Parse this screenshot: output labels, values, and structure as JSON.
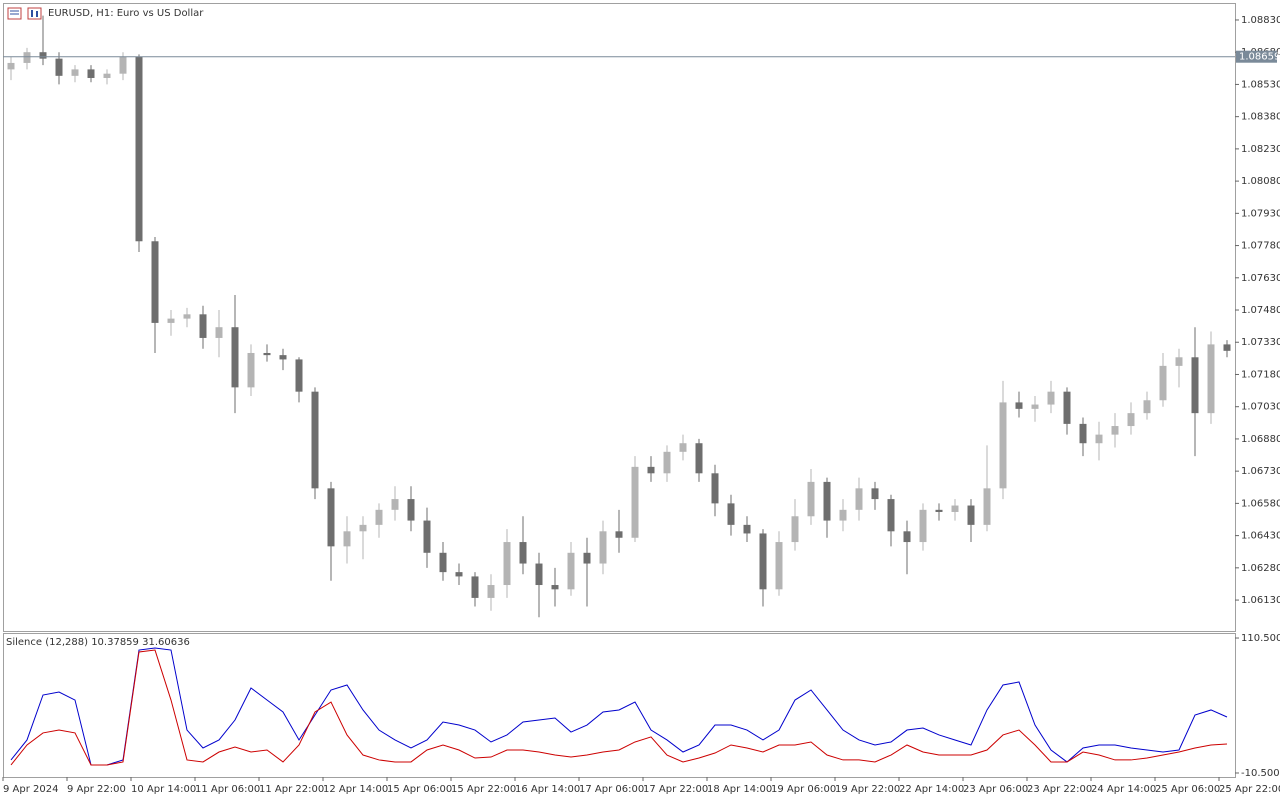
{
  "header": {
    "title": "EURUSD, H1:  Euro vs US Dollar"
  },
  "chart_data": [
    {
      "type": "candlestick",
      "up_color": "#b4b4b4",
      "down_color": "#6e6e6e",
      "ylim": [
        1.05986,
        1.08909
      ],
      "yticks": [
        {
          "value": 1.0883,
          "label": "1.08830"
        },
        {
          "value": 1.0868,
          "label": "1.08680"
        },
        {
          "value": 1.0853,
          "label": "1.08530"
        },
        {
          "value": 1.0838,
          "label": "1.08380"
        },
        {
          "value": 1.0823,
          "label": "1.08230"
        },
        {
          "value": 1.0808,
          "label": "1.08080"
        },
        {
          "value": 1.0793,
          "label": "1.07930"
        },
        {
          "value": 1.0778,
          "label": "1.07780"
        },
        {
          "value": 1.0763,
          "label": "1.07630"
        },
        {
          "value": 1.0748,
          "label": "1.07480"
        },
        {
          "value": 1.0733,
          "label": "1.07330"
        },
        {
          "value": 1.0718,
          "label": "1.07180"
        },
        {
          "value": 1.0703,
          "label": "1.07030"
        },
        {
          "value": 1.0688,
          "label": "1.06880"
        },
        {
          "value": 1.0673,
          "label": "1.06730"
        },
        {
          "value": 1.0658,
          "label": "1.06580"
        },
        {
          "value": 1.0643,
          "label": "1.06430"
        },
        {
          "value": 1.0628,
          "label": "1.06280"
        },
        {
          "value": 1.0613,
          "label": "1.06130"
        }
      ],
      "price_line": 1.08659,
      "price_line_color": "#7a8a99",
      "xticks": [
        {
          "value": 0,
          "label": "9 Apr 2024"
        },
        {
          "value": 4,
          "label": "9 Apr 22:00"
        },
        {
          "value": 8,
          "label": "10 Apr 14:00"
        },
        {
          "value": 12,
          "label": "11 Apr 06:00"
        },
        {
          "value": 16,
          "label": "11 Apr 22:00"
        },
        {
          "value": 20,
          "label": "12 Apr 14:00"
        },
        {
          "value": 24,
          "label": "15 Apr 06:00"
        },
        {
          "value": 28,
          "label": "15 Apr 22:00"
        },
        {
          "value": 32,
          "label": "16 Apr 14:00"
        },
        {
          "value": 36,
          "label": "17 Apr 06:00"
        },
        {
          "value": 40,
          "label": "17 Apr 22:00"
        },
        {
          "value": 44,
          "label": "18 Apr 14:00"
        },
        {
          "value": 48,
          "label": "19 Apr 06:00"
        },
        {
          "value": 52,
          "label": "19 Apr 22:00"
        },
        {
          "value": 56,
          "label": "22 Apr 14:00"
        },
        {
          "value": 60,
          "label": "23 Apr 06:00"
        },
        {
          "value": 64,
          "label": "23 Apr 22:00"
        },
        {
          "value": 68,
          "label": "24 Apr 14:00"
        },
        {
          "value": 72,
          "label": "25 Apr 06:00"
        },
        {
          "value": 76,
          "label": "25 Apr 22:00"
        }
      ],
      "ohlc": [
        [
          1.086,
          1.0866,
          1.0855,
          1.0863
        ],
        [
          1.0863,
          1.087,
          1.086,
          1.0868
        ],
        [
          1.0868,
          1.0885,
          1.0862,
          1.0865
        ],
        [
          1.0865,
          1.0868,
          1.0853,
          1.0857
        ],
        [
          1.0857,
          1.0862,
          1.0854,
          1.086
        ],
        [
          1.086,
          1.0862,
          1.0854,
          1.0856
        ],
        [
          1.0856,
          1.086,
          1.0853,
          1.0858
        ],
        [
          1.0858,
          1.0868,
          1.0855,
          1.0866
        ],
        [
          1.0866,
          1.0867,
          1.0775,
          1.078
        ],
        [
          1.078,
          1.0782,
          1.0728,
          1.0742
        ],
        [
          1.0742,
          1.0748,
          1.0736,
          1.0744
        ],
        [
          1.0744,
          1.0749,
          1.074,
          1.0746
        ],
        [
          1.0746,
          1.075,
          1.073,
          1.0735
        ],
        [
          1.0735,
          1.0748,
          1.0726,
          1.074
        ],
        [
          1.074,
          1.0755,
          1.07,
          1.0712
        ],
        [
          1.0712,
          1.0732,
          1.0708,
          1.0728
        ],
        [
          1.0728,
          1.0732,
          1.0724,
          1.0727
        ],
        [
          1.0727,
          1.073,
          1.072,
          1.0725
        ],
        [
          1.0725,
          1.0726,
          1.0705,
          1.071
        ],
        [
          1.071,
          1.0712,
          1.066,
          1.0665
        ],
        [
          1.0665,
          1.0668,
          1.0622,
          1.0638
        ],
        [
          1.0638,
          1.0652,
          1.063,
          1.0645
        ],
        [
          1.0645,
          1.0652,
          1.0632,
          1.0648
        ],
        [
          1.0648,
          1.0658,
          1.0642,
          1.0655
        ],
        [
          1.0655,
          1.0666,
          1.065,
          1.066
        ],
        [
          1.066,
          1.0666,
          1.0645,
          1.065
        ],
        [
          1.065,
          1.0656,
          1.0628,
          1.0635
        ],
        [
          1.0635,
          1.064,
          1.0622,
          1.0626
        ],
        [
          1.0626,
          1.063,
          1.062,
          1.0624
        ],
        [
          1.0624,
          1.0626,
          1.061,
          1.0614
        ],
        [
          1.0614,
          1.0625,
          1.0608,
          1.062
        ],
        [
          1.062,
          1.0646,
          1.0614,
          1.064
        ],
        [
          1.064,
          1.0652,
          1.0625,
          1.063
        ],
        [
          1.063,
          1.0635,
          1.0605,
          1.062
        ],
        [
          1.062,
          1.0628,
          1.061,
          1.0618
        ],
        [
          1.0618,
          1.064,
          1.0615,
          1.0635
        ],
        [
          1.0635,
          1.0642,
          1.061,
          1.063
        ],
        [
          1.063,
          1.065,
          1.0625,
          1.0645
        ],
        [
          1.0645,
          1.0655,
          1.0635,
          1.0642
        ],
        [
          1.0642,
          1.068,
          1.064,
          1.0675
        ],
        [
          1.0675,
          1.068,
          1.0668,
          1.0672
        ],
        [
          1.0672,
          1.0685,
          1.0668,
          1.0682
        ],
        [
          1.0682,
          1.069,
          1.0678,
          1.0686
        ],
        [
          1.0686,
          1.0688,
          1.0668,
          1.0672
        ],
        [
          1.0672,
          1.0676,
          1.0652,
          1.0658
        ],
        [
          1.0658,
          1.0662,
          1.0643,
          1.0648
        ],
        [
          1.0648,
          1.0652,
          1.064,
          1.0644
        ],
        [
          1.0644,
          1.0646,
          1.061,
          1.0618
        ],
        [
          1.0618,
          1.0645,
          1.0615,
          1.064
        ],
        [
          1.064,
          1.066,
          1.0636,
          1.0652
        ],
        [
          1.0652,
          1.0674,
          1.0648,
          1.0668
        ],
        [
          1.0668,
          1.067,
          1.0642,
          1.065
        ],
        [
          1.065,
          1.066,
          1.0645,
          1.0655
        ],
        [
          1.0655,
          1.067,
          1.065,
          1.0665
        ],
        [
          1.0665,
          1.0668,
          1.0655,
          1.066
        ],
        [
          1.066,
          1.0662,
          1.0638,
          1.0645
        ],
        [
          1.0645,
          1.065,
          1.0625,
          1.064
        ],
        [
          1.064,
          1.0658,
          1.0636,
          1.0655
        ],
        [
          1.0655,
          1.0658,
          1.065,
          1.0654
        ],
        [
          1.0654,
          1.066,
          1.065,
          1.0657
        ],
        [
          1.0657,
          1.066,
          1.064,
          1.0648
        ],
        [
          1.0648,
          1.0685,
          1.0645,
          1.0665
        ],
        [
          1.0665,
          1.0715,
          1.066,
          1.0705
        ],
        [
          1.0705,
          1.071,
          1.0698,
          1.0702
        ],
        [
          1.0702,
          1.0708,
          1.0696,
          1.0704
        ],
        [
          1.0704,
          1.0715,
          1.07,
          1.071
        ],
        [
          1.071,
          1.0712,
          1.069,
          1.0695
        ],
        [
          1.0695,
          1.0698,
          1.068,
          1.0686
        ],
        [
          1.0686,
          1.0696,
          1.0678,
          1.069
        ],
        [
          1.069,
          1.07,
          1.0684,
          1.0694
        ],
        [
          1.0694,
          1.0705,
          1.069,
          1.07
        ],
        [
          1.07,
          1.071,
          1.0697,
          1.0706
        ],
        [
          1.0706,
          1.0728,
          1.0703,
          1.0722
        ],
        [
          1.0722,
          1.073,
          1.0712,
          1.0726
        ],
        [
          1.0726,
          1.074,
          1.068,
          1.07
        ],
        [
          1.07,
          1.0738,
          1.0695,
          1.0732
        ],
        [
          1.0732,
          1.0734,
          1.0726,
          1.0729
        ]
      ]
    },
    {
      "type": "line",
      "title": "Silence (12,288) 10.37859 31.60636",
      "ylim": [
        -14.1,
        115
      ],
      "yticks": [
        {
          "value": 110.5,
          "label": "110.5000"
        },
        {
          "value": -10.5,
          "label": "-10.5000"
        }
      ],
      "series": [
        {
          "color": "#0000cc",
          "values": [
            1.2,
            19.1,
            59.4,
            62.1,
            54.9,
            -3.3,
            -3.3,
            1.2,
            99.7,
            101.5,
            99.7,
            28.0,
            11.9,
            19.1,
            37.0,
            65.7,
            54.9,
            44.2,
            19.1,
            41.5,
            63.9,
            68.4,
            46.0,
            28.0,
            19.1,
            11.9,
            19.1,
            35.2,
            32.5,
            28.0,
            17.3,
            23.6,
            35.2,
            37.0,
            38.8,
            26.2,
            32.5,
            44.2,
            46.0,
            53.1,
            28.0,
            19.1,
            8.3,
            14.6,
            32.5,
            32.5,
            28.0,
            19.1,
            28.0,
            54.9,
            63.9,
            46.0,
            28.0,
            19.1,
            14.6,
            17.3,
            28.0,
            29.8,
            23.6,
            19.1,
            14.6,
            46.0,
            68.4,
            71.1,
            32.5,
            10.1,
            -0.6,
            11.9,
            14.6,
            14.6,
            11.9,
            10.1,
            8.3,
            10.1,
            41.5,
            46.0,
            39.7
          ]
        },
        {
          "color": "#cc0000",
          "values": [
            -3.3,
            14.6,
            25.4,
            28.0,
            25.4,
            -3.3,
            -3.3,
            -0.6,
            98.0,
            99.7,
            54.9,
            1.2,
            -0.6,
            8.3,
            12.8,
            8.3,
            10.1,
            -0.6,
            14.6,
            44.2,
            53.1,
            23.6,
            5.6,
            1.2,
            -0.6,
            -0.6,
            10.1,
            14.6,
            10.1,
            2.9,
            3.8,
            10.1,
            10.1,
            8.3,
            5.6,
            3.8,
            5.6,
            8.3,
            10.1,
            17.3,
            21.8,
            5.6,
            -0.6,
            2.9,
            7.4,
            14.6,
            11.9,
            8.3,
            14.6,
            14.6,
            17.3,
            5.6,
            1.2,
            1.2,
            -0.6,
            5.6,
            14.6,
            8.3,
            5.6,
            5.6,
            5.6,
            10.1,
            23.6,
            28.0,
            14.6,
            -0.6,
            -0.6,
            8.3,
            5.6,
            1.2,
            1.2,
            2.9,
            5.6,
            8.3,
            11.9,
            14.6,
            15.5
          ]
        }
      ]
    }
  ]
}
